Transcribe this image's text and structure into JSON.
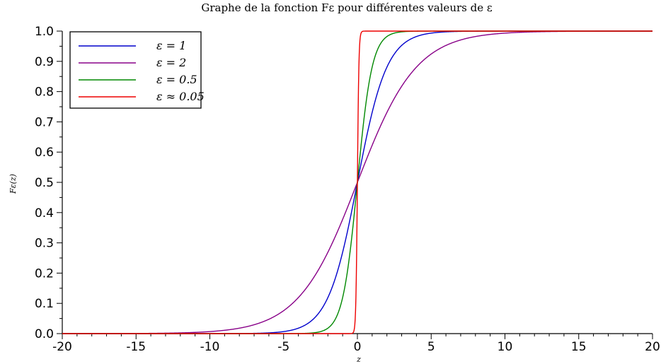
{
  "chart_data": {
    "type": "line",
    "title": "Graphe de la fonction Fε pour différentes valeurs de ε",
    "xlabel": "z",
    "ylabel": "Fε(z)",
    "xlim": [
      -20,
      20
    ],
    "ylim": [
      0,
      1
    ],
    "x_ticks": [
      "-20",
      "-15",
      "-10",
      "-5",
      "0",
      "5",
      "10",
      "15",
      "20"
    ],
    "y_ticks": [
      "0.0",
      "0.1",
      "0.2",
      "0.3",
      "0.4",
      "0.5",
      "0.6",
      "0.7",
      "0.8",
      "0.9",
      "1.0"
    ],
    "legend_position": "top-left",
    "grid": false,
    "series": [
      {
        "name": "ε = 1",
        "color": "#0000cc",
        "epsilon": 1
      },
      {
        "name": "ε = 2",
        "color": "#880088",
        "epsilon": 2
      },
      {
        "name": "ε = 0.5",
        "color": "#008800",
        "epsilon": 0.5
      },
      {
        "name": "ε ≈ 0.05",
        "color": "#ee0000",
        "epsilon": 0.05
      }
    ],
    "function": "Fε(z) = 1 / (1 + exp(-z/ε))"
  }
}
